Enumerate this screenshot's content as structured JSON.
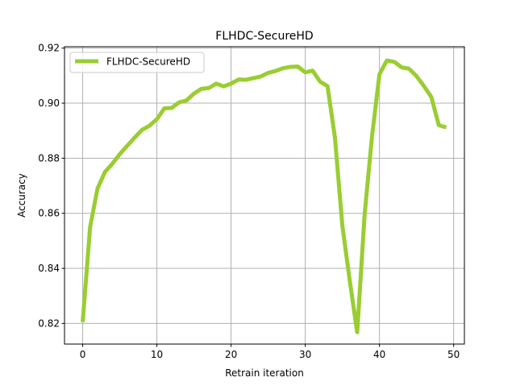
{
  "chart_data": {
    "type": "line",
    "title": "FLHDC-SecureHD",
    "xlabel": "Retrain iteration",
    "ylabel": "Accuracy",
    "xlim": [
      -2.45,
      51.45
    ],
    "ylim": [
      0.8125,
      0.9205
    ],
    "xticks": [
      0,
      10,
      20,
      30,
      40,
      50
    ],
    "xtick_labels": [
      "0",
      "10",
      "20",
      "30",
      "40",
      "50"
    ],
    "yticks": [
      0.82,
      0.84,
      0.86,
      0.88,
      0.9,
      0.92
    ],
    "ytick_labels": [
      "0.82",
      "0.84",
      "0.86",
      "0.88",
      "0.90",
      "0.92"
    ],
    "grid": true,
    "legend_position": "upper-left",
    "series": [
      {
        "name": "FLHDC-SecureHD",
        "color": "#9acd32",
        "x": [
          0,
          1,
          2,
          3,
          4,
          5,
          6,
          7,
          8,
          9,
          10,
          11,
          12,
          13,
          14,
          15,
          16,
          17,
          18,
          19,
          20,
          21,
          22,
          23,
          24,
          25,
          26,
          27,
          28,
          29,
          30,
          31,
          32,
          33,
          34,
          35,
          36,
          37,
          38,
          39,
          40,
          41,
          42,
          43,
          44,
          45,
          46,
          47,
          48,
          49
        ],
        "y": [
          0.8205,
          0.855,
          0.869,
          0.875,
          0.878,
          0.8815,
          0.8845,
          0.8875,
          0.8903,
          0.8918,
          0.8942,
          0.8981,
          0.8983,
          0.9003,
          0.901,
          0.9035,
          0.9052,
          0.9055,
          0.9071,
          0.9061,
          0.9071,
          0.9086,
          0.9085,
          0.9091,
          0.9097,
          0.911,
          0.9117,
          0.9127,
          0.9132,
          0.9133,
          0.9112,
          0.9118,
          0.9078,
          0.9062,
          0.8875,
          0.8555,
          0.8355,
          0.8168,
          0.8595,
          0.888,
          0.9105,
          0.9155,
          0.915,
          0.913,
          0.9125,
          0.9098,
          0.9062,
          0.9022,
          0.892,
          0.8912
        ]
      }
    ]
  }
}
